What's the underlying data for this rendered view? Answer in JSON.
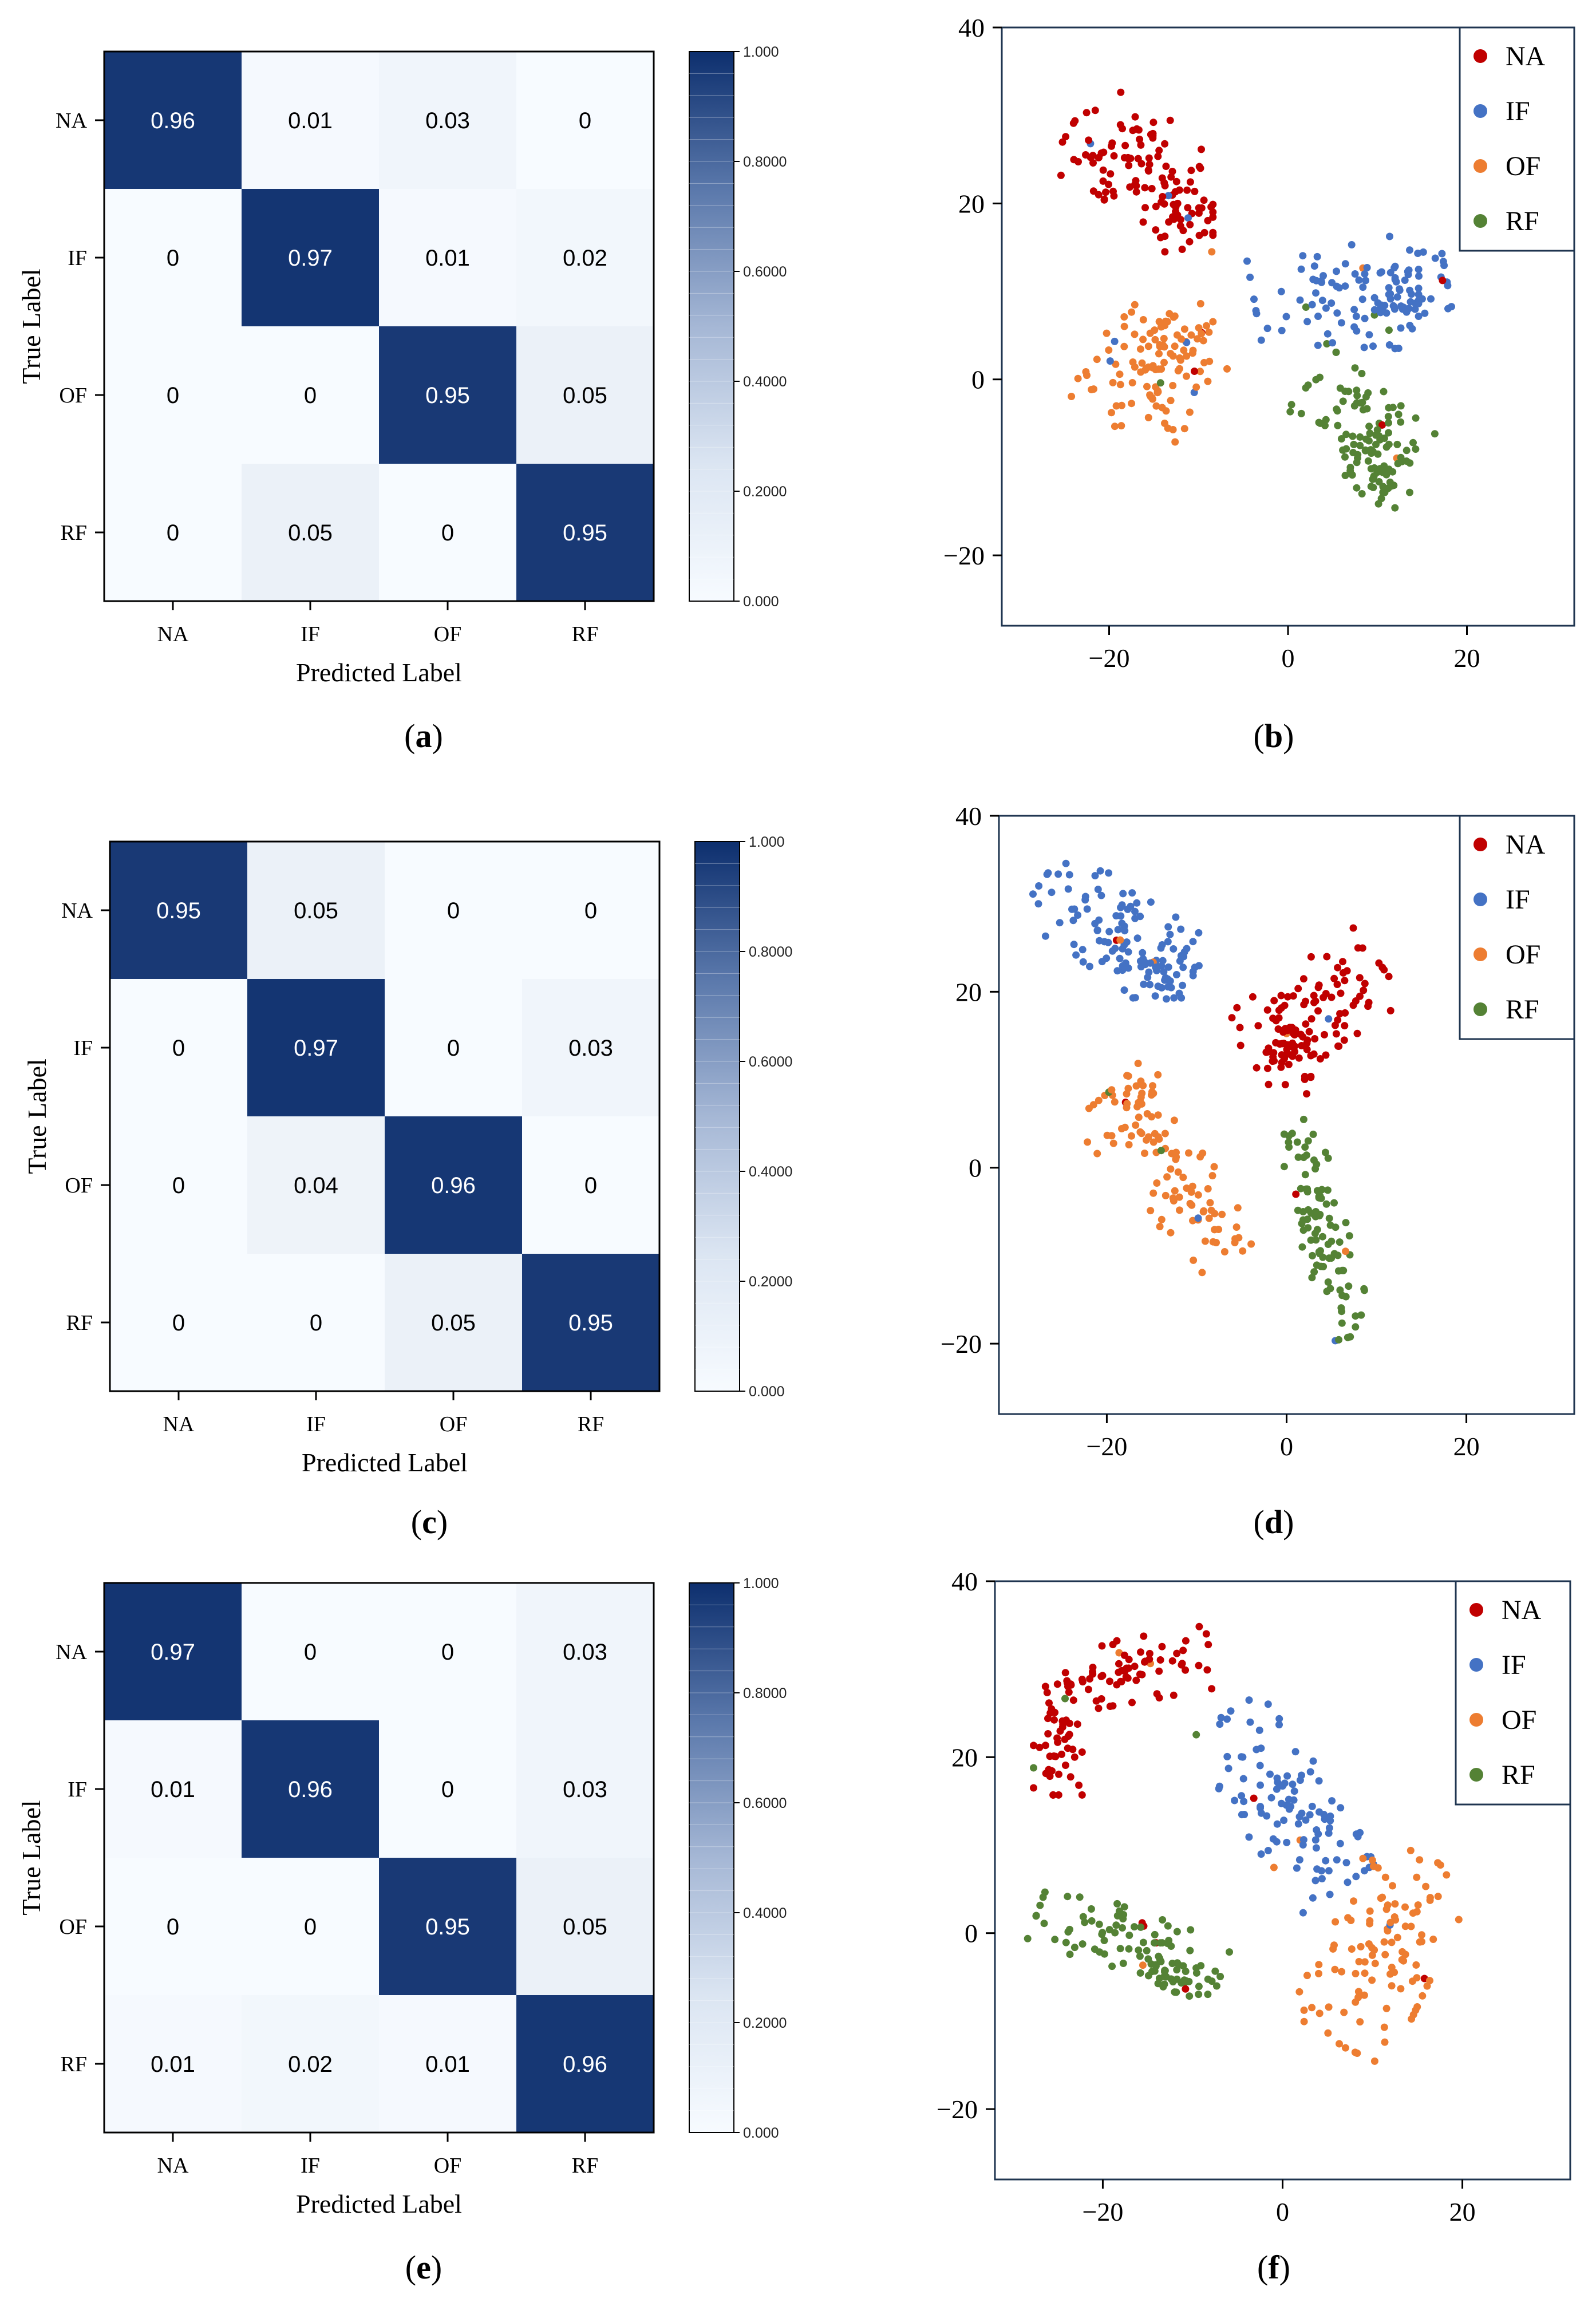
{
  "figure": {
    "panel_labels": [
      "a",
      "b",
      "c",
      "d",
      "e",
      "f"
    ]
  },
  "chart_data": [
    {
      "id": "a",
      "type": "heatmap",
      "title": "",
      "xlabel": "Predicted Label",
      "ylabel": "True Label",
      "categories": [
        "NA",
        "IF",
        "OF",
        "RF"
      ],
      "matrix": [
        [
          0.96,
          0.01,
          0.03,
          0
        ],
        [
          0,
          0.97,
          0.01,
          0.02
        ],
        [
          0,
          0,
          0.95,
          0.05
        ],
        [
          0,
          0.05,
          0,
          0.95
        ]
      ],
      "colorbar": {
        "range": [
          0,
          1
        ],
        "ticks": [
          "0.000",
          "0.2000",
          "0.4000",
          "0.6000",
          "0.8000",
          "1.000"
        ]
      }
    },
    {
      "id": "b",
      "type": "scatter",
      "title": "",
      "xlim": [
        -32,
        32
      ],
      "ylim": [
        -28,
        40
      ],
      "xticks": [
        -20,
        0,
        20
      ],
      "yticks": [
        -20,
        0,
        20,
        40
      ],
      "legend_position": "top-right",
      "series": [
        {
          "name": "NA",
          "color": "#c00000",
          "clusters": [
            [
              -17,
              25,
              4.5,
              3.2,
              -30,
              90
            ],
            [
              -12,
              19,
              2.0,
              2.5,
              0,
              40
            ]
          ]
        },
        {
          "name": "IF",
          "color": "#4472c4",
          "clusters": [
            [
              7,
              10,
              6.0,
              3.0,
              10,
              90
            ],
            [
              11,
              8,
              2.0,
              2.5,
              0,
              40
            ]
          ]
        },
        {
          "name": "OF",
          "color": "#ed7d31",
          "clusters": [
            [
              -16,
              0,
              3.5,
              3.8,
              55,
              80
            ],
            [
              -12,
              5,
              2.0,
              2.0,
              0,
              40
            ]
          ]
        },
        {
          "name": "RF",
          "color": "#548235",
          "clusters": [
            [
              8,
              -5,
              4.0,
              2.5,
              -40,
              80
            ],
            [
              10,
              -11,
              2.0,
              2.0,
              0,
              40
            ]
          ]
        }
      ]
    },
    {
      "id": "c",
      "type": "heatmap",
      "title": "",
      "xlabel": "Predicted Label",
      "ylabel": "True Label",
      "categories": [
        "NA",
        "IF",
        "OF",
        "RF"
      ],
      "matrix": [
        [
          0.95,
          0.05,
          0,
          0
        ],
        [
          0,
          0.97,
          0,
          0.03
        ],
        [
          0,
          0.04,
          0.96,
          0
        ],
        [
          0,
          0,
          0.05,
          0.95
        ]
      ],
      "colorbar": {
        "range": [
          0,
          1
        ],
        "ticks": [
          "0.000",
          "0.2000",
          "0.4000",
          "0.6000",
          "0.8000",
          "1.000"
        ]
      }
    },
    {
      "id": "d",
      "type": "scatter",
      "title": "",
      "xlim": [
        -32,
        32
      ],
      "ylim": [
        -28,
        40
      ],
      "xticks": [
        -20,
        0,
        20
      ],
      "yticks": [
        -20,
        0,
        20,
        40
      ],
      "legend_position": "top-right",
      "series": [
        {
          "name": "NA",
          "color": "#c00000",
          "clusters": [
            [
              3,
              18,
              5.0,
              2.8,
              35,
              100
            ],
            [
              0,
              12,
              1.5,
              2.0,
              0,
              30
            ]
          ]
        },
        {
          "name": "IF",
          "color": "#4472c4",
          "clusters": [
            [
              -19,
              27,
              5.5,
              2.8,
              -35,
              100
            ],
            [
              -14,
              22,
              2.0,
              1.5,
              0,
              30
            ]
          ]
        },
        {
          "name": "OF",
          "color": "#ed7d31",
          "clusters": [
            [
              -13,
              -1,
              6.5,
              2.5,
              -50,
              90
            ],
            [
              -16,
              8,
              1.0,
              2.5,
              0,
              25
            ]
          ]
        },
        {
          "name": "RF",
          "color": "#548235",
          "clusters": [
            [
              4,
              -7,
              7.0,
              1.5,
              -75,
              100
            ]
          ]
        }
      ]
    },
    {
      "id": "e",
      "type": "heatmap",
      "title": "",
      "xlabel": "Predicted Label",
      "ylabel": "True Label",
      "categories": [
        "NA",
        "IF",
        "OF",
        "RF"
      ],
      "matrix": [
        [
          0.97,
          0,
          0,
          0.03
        ],
        [
          0.01,
          0.96,
          0,
          0.03
        ],
        [
          0,
          0,
          0.95,
          0.05
        ],
        [
          0.01,
          0.02,
          0.01,
          0.96
        ]
      ],
      "colorbar": {
        "range": [
          0,
          1
        ],
        "ticks": [
          "0.000",
          "0.2000",
          "0.4000",
          "0.6000",
          "0.8000",
          "1.000"
        ]
      }
    },
    {
      "id": "f",
      "type": "scatter",
      "title": "",
      "xlim": [
        -32,
        32
      ],
      "ylim": [
        -28,
        40
      ],
      "xticks": [
        -20,
        0,
        20
      ],
      "yticks": [
        -20,
        0,
        20,
        40
      ],
      "legend_position": "top-right",
      "series": [
        {
          "name": "NA",
          "color": "#c00000",
          "clusters": [
            [
              -16,
              30,
              4.5,
              2.0,
              10,
              70
            ],
            [
              -25,
              22,
              1.5,
              3.5,
              0,
              50
            ]
          ]
        },
        {
          "name": "IF",
          "color": "#4472c4",
          "clusters": [
            [
              0,
              15,
              6.5,
              3.0,
              -55,
              110
            ]
          ]
        },
        {
          "name": "OF",
          "color": "#ed7d31",
          "clusters": [
            [
              11,
              -2,
              6.5,
              3.5,
              65,
              110
            ]
          ]
        },
        {
          "name": "RF",
          "color": "#548235",
          "clusters": [
            [
              -17,
              -1,
              6.0,
              2.0,
              -20,
              90
            ],
            [
              -11,
              -5,
              1.5,
              1.2,
              0,
              25
            ]
          ]
        }
      ]
    }
  ]
}
